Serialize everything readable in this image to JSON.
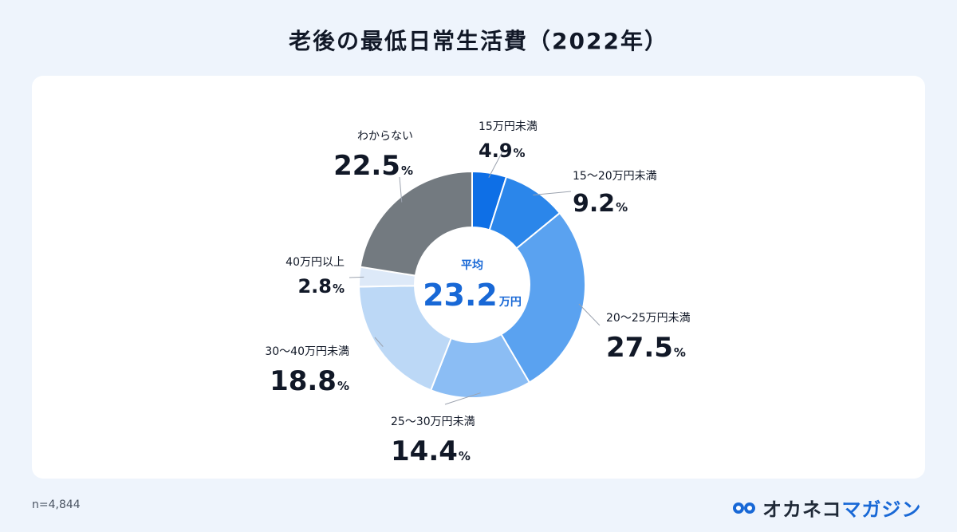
{
  "title": "老後の最低日常生活費（2022年）",
  "footnote": "n=4,844",
  "brand": {
    "name_part1": "オカネコ",
    "name_part2": "マガジン",
    "icon": "owl-eyes-icon",
    "accent_color": "#1868d6"
  },
  "chart_data": {
    "type": "pie",
    "donut": true,
    "center_label": "平均",
    "center_value": "23.2",
    "center_unit": "万円",
    "unit_suffix": "%",
    "series": [
      {
        "name": "15万円未満",
        "value": 4.9,
        "label": "4.9",
        "color": "#0e6fe6"
      },
      {
        "name": "15〜20万円未満",
        "value": 9.2,
        "label": "9.2",
        "color": "#2b86ea"
      },
      {
        "name": "20〜25万円未満",
        "value": 27.5,
        "label": "27.5",
        "color": "#5aa2f0"
      },
      {
        "name": "25〜30万円未満",
        "value": 14.4,
        "label": "14.4",
        "color": "#8bbdf4"
      },
      {
        "name": "30〜40万円未満",
        "value": 18.8,
        "label": "18.8",
        "color": "#bcd8f6"
      },
      {
        "name": "40万円以上",
        "value": 2.8,
        "label": "2.8",
        "color": "#dde9f8"
      },
      {
        "name": "わからない",
        "value": 22.5,
        "label": "22.5",
        "color": "#737a80"
      }
    ]
  }
}
